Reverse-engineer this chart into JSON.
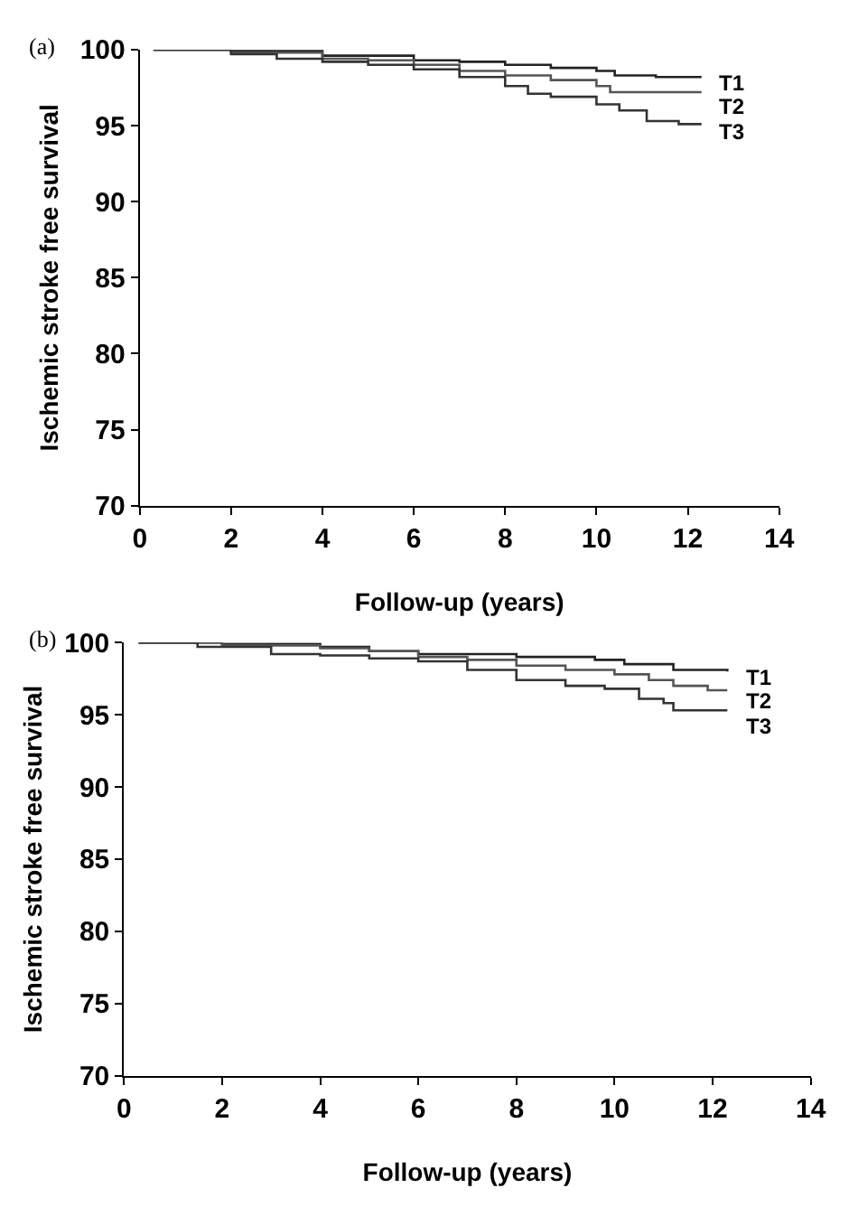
{
  "chart_data": [
    {
      "type": "step",
      "title": "(a)",
      "xlabel": "Follow-up (years)",
      "ylabel": "Ischemic stroke free survival",
      "xlim": [
        0,
        14
      ],
      "xticks": [
        0,
        2,
        4,
        6,
        8,
        10,
        12,
        14
      ],
      "ylim": [
        70,
        100
      ],
      "yticks": [
        70,
        75,
        80,
        85,
        90,
        95,
        100
      ],
      "legend": false,
      "marker": "none",
      "line_style": "solid",
      "series": [
        {
          "name": "T1",
          "color": "#222222",
          "x": [
            0.3,
            2,
            4,
            6,
            7,
            8,
            9,
            10,
            10.4,
            11.3,
            12.3
          ],
          "values": [
            100,
            99.9,
            99.6,
            99.3,
            99.2,
            99.0,
            98.8,
            98.6,
            98.3,
            98.2,
            98.2
          ]
        },
        {
          "name": "T2",
          "color": "#555555",
          "x": [
            0.3,
            2,
            4,
            5,
            6,
            7,
            8,
            9,
            10,
            10.3,
            12.3
          ],
          "values": [
            100,
            99.8,
            99.4,
            99.3,
            99.0,
            98.6,
            98.3,
            98.0,
            97.6,
            97.2,
            97.2
          ]
        },
        {
          "name": "T3",
          "color": "#333333",
          "x": [
            0.3,
            2,
            3,
            4,
            5,
            6,
            7,
            8,
            8.5,
            9,
            10,
            10.5,
            11.1,
            11.8,
            12.3
          ],
          "values": [
            100,
            99.7,
            99.4,
            99.2,
            99.0,
            98.7,
            98.2,
            97.6,
            97.1,
            96.9,
            96.4,
            96.0,
            95.3,
            95.1,
            95.1
          ]
        }
      ]
    },
    {
      "type": "step",
      "title": "(b)",
      "xlabel": "Follow-up (years)",
      "ylabel": "Ischemic stroke free survival",
      "xlim": [
        0,
        14
      ],
      "xticks": [
        0,
        2,
        4,
        6,
        8,
        10,
        12,
        14
      ],
      "ylim": [
        70,
        100
      ],
      "yticks": [
        70,
        75,
        80,
        85,
        90,
        95,
        100
      ],
      "legend": false,
      "marker": "none",
      "line_style": "solid",
      "series": [
        {
          "name": "T1",
          "color": "#222222",
          "x": [
            0.3,
            2,
            4,
            5,
            6,
            8,
            9.6,
            10.2,
            11.2,
            12.3
          ],
          "values": [
            100,
            99.9,
            99.7,
            99.4,
            99.2,
            99.0,
            98.8,
            98.5,
            98.1,
            98.0
          ]
        },
        {
          "name": "T2",
          "color": "#555555",
          "x": [
            0.3,
            2,
            4,
            5,
            6,
            7,
            8,
            9,
            10,
            10.7,
            11.2,
            11.9,
            12.3
          ],
          "values": [
            100,
            99.8,
            99.6,
            99.4,
            99.0,
            98.8,
            98.4,
            98.1,
            97.8,
            97.4,
            97.0,
            96.7,
            96.7
          ]
        },
        {
          "name": "T3",
          "color": "#333333",
          "x": [
            0.3,
            1.5,
            3,
            4,
            5,
            6,
            7,
            8,
            9,
            9.8,
            10.5,
            11,
            11.2,
            12.3
          ],
          "values": [
            100,
            99.7,
            99.2,
            99.1,
            98.9,
            98.7,
            98.1,
            97.4,
            97.0,
            96.8,
            96.1,
            95.8,
            95.3,
            95.3
          ]
        }
      ]
    }
  ]
}
